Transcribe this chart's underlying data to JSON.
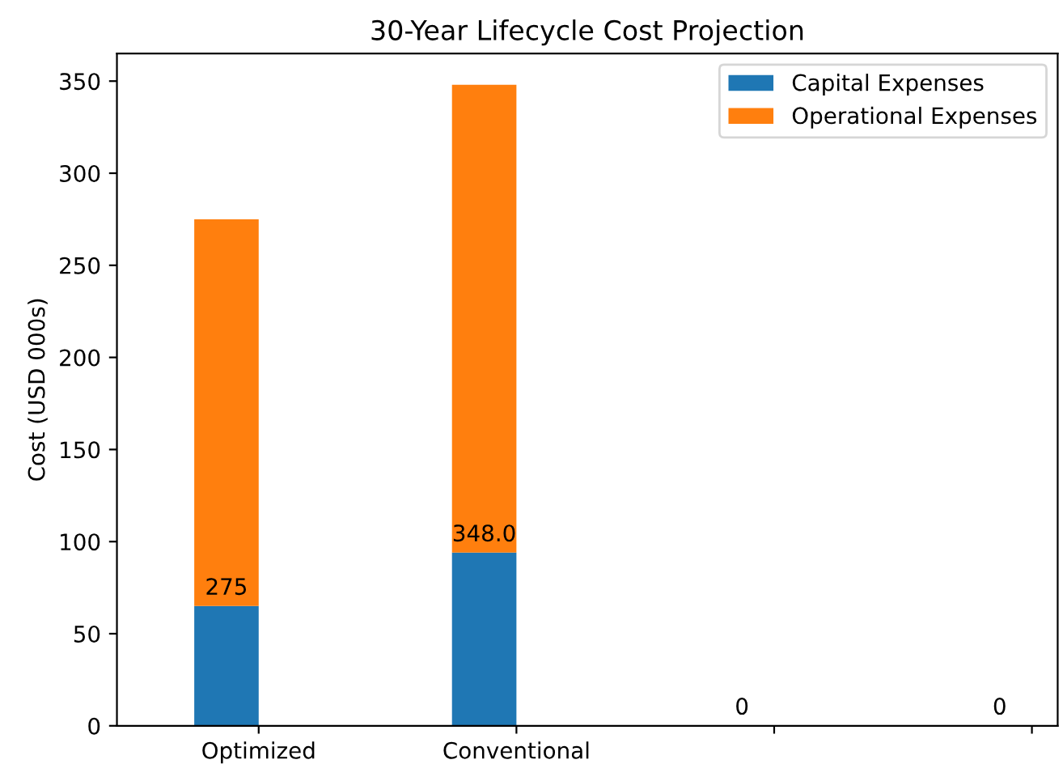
{
  "chart_data": {
    "type": "bar",
    "title": "30-Year Lifecycle Cost Projection",
    "ylabel": "Cost (USD 000s)",
    "categories": [
      "Optimized",
      "Conventional",
      null,
      null
    ],
    "stacked": true,
    "series": [
      {
        "name": "Capital Expenses",
        "color": "#1f77b4",
        "values": [
          65,
          94,
          0,
          0
        ]
      },
      {
        "name": "Operational Expenses",
        "color": "#ff7f0e",
        "values": [
          210,
          254,
          0,
          0
        ]
      }
    ],
    "totals": [
      "275",
      "348.0",
      "0",
      "0"
    ],
    "ylim": [
      0,
      365
    ],
    "yticks": [
      0,
      50,
      100,
      150,
      200,
      250,
      300,
      350
    ],
    "legend": "top right"
  }
}
